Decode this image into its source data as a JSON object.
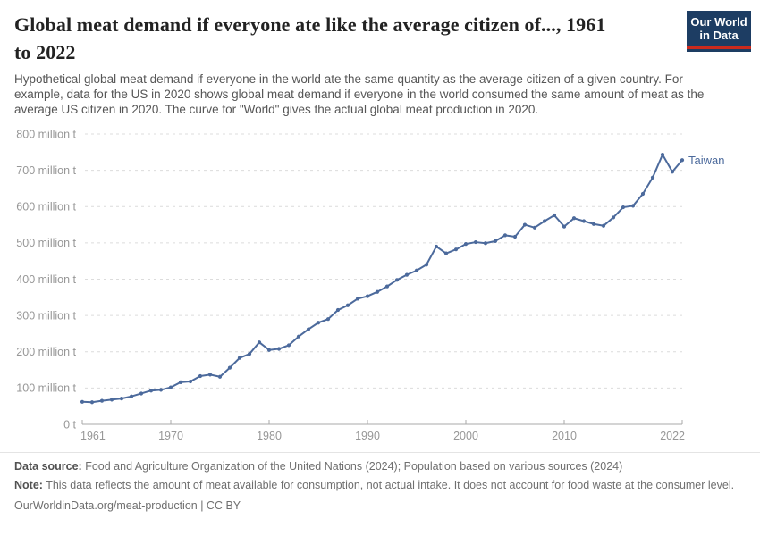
{
  "header": {
    "title_line1": "Global meat demand if everyone ate like the average citizen of..., 1961",
    "title_line2": "to 2022",
    "subtitle": "Hypothetical global meat demand if everyone in the world ate the same quantity as the average citizen of a given country. For example, data for the US in 2020 shows global meat demand if everyone in the world consumed the same amount of meat as the average US citizen in 2020. The curve for \"World\" gives the actual global meat production in 2020.",
    "logo": {
      "line1": "Our World",
      "line2": "in Data",
      "bg_color": "#1d3d63",
      "bar_color": "#cb2a1d"
    }
  },
  "chart_data": {
    "type": "line",
    "title": "Global meat demand if everyone ate like the average citizen of..., 1961 to 2022",
    "xlabel": "",
    "ylabel": "",
    "xlim": [
      1961,
      2022
    ],
    "ylim": [
      0,
      800
    ],
    "grid": "horizontal-dashed",
    "legend_position": "end-of-line-label",
    "x_ticks": [
      1961,
      1970,
      1980,
      1990,
      2000,
      2010,
      2022
    ],
    "y_ticks": [
      {
        "value": 0,
        "label": "0 t"
      },
      {
        "value": 100,
        "label": "100 million t"
      },
      {
        "value": 200,
        "label": "200 million t"
      },
      {
        "value": 300,
        "label": "300 million t"
      },
      {
        "value": 400,
        "label": "400 million t"
      },
      {
        "value": 500,
        "label": "500 million t"
      },
      {
        "value": 600,
        "label": "600 million t"
      },
      {
        "value": 700,
        "label": "700 million t"
      },
      {
        "value": 800,
        "label": "800 million t"
      }
    ],
    "series": [
      {
        "name": "Taiwan",
        "color": "#4C6A9C",
        "unit": "million t",
        "x": [
          1961,
          1962,
          1963,
          1964,
          1965,
          1966,
          1967,
          1968,
          1969,
          1970,
          1971,
          1972,
          1973,
          1974,
          1975,
          1976,
          1977,
          1978,
          1979,
          1980,
          1981,
          1982,
          1983,
          1984,
          1985,
          1986,
          1987,
          1988,
          1989,
          1990,
          1991,
          1992,
          1993,
          1994,
          1995,
          1996,
          1997,
          1998,
          1999,
          2000,
          2001,
          2002,
          2003,
          2004,
          2005,
          2006,
          2007,
          2008,
          2009,
          2010,
          2011,
          2012,
          2013,
          2014,
          2015,
          2016,
          2017,
          2018,
          2019,
          2020,
          2021,
          2022
        ],
        "values": [
          62,
          61,
          65,
          68,
          71,
          77,
          85,
          93,
          95,
          102,
          116,
          118,
          133,
          137,
          131,
          156,
          183,
          194,
          226,
          205,
          208,
          218,
          242,
          262,
          280,
          290,
          315,
          328,
          346,
          353,
          365,
          380,
          398,
          412,
          424,
          440,
          490,
          471,
          482,
          497,
          502,
          499,
          505,
          521,
          517,
          550,
          542,
          560,
          576,
          545,
          568,
          560,
          552,
          547,
          570,
          598,
          602,
          635,
          680,
          743,
          696,
          728
        ]
      }
    ],
    "colors": {
      "gridline": "#dcdcdc",
      "axis_line": "#a8a8a8",
      "tick_label": "#979797"
    }
  },
  "footer": {
    "datasource_label": "Data source:",
    "datasource_text": " Food and Agriculture Organization of the United Nations (2024); Population based on various sources (2024)",
    "note_label": "Note:",
    "note_text": " This data reflects the amount of meat available for consumption, not actual intake. It does not account for food waste at the consumer level.",
    "license": "OurWorldinData.org/meat-production | CC BY"
  }
}
